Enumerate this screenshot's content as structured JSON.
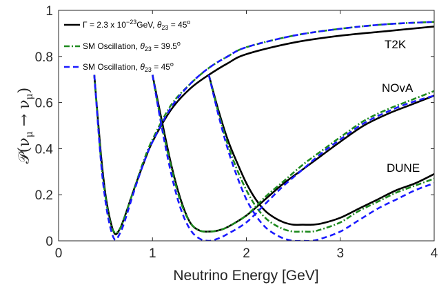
{
  "chart_data": {
    "type": "line",
    "xlabel": "Neutrino Energy [GeV]",
    "ylabel": "𝒫(ν",
    "ylabel_parts": {
      "script_p": "𝒫(ν",
      "sub1": "μ",
      "arrow": " → ν",
      "sub2": "μ",
      "close": ")"
    },
    "xlim": [
      0,
      4
    ],
    "ylim": [
      0,
      1
    ],
    "xticks": [
      "0",
      "1",
      "2",
      "3",
      "4"
    ],
    "yticks": [
      "0",
      "0.2",
      "0.4",
      "0.6",
      "0.8",
      "1"
    ],
    "grid": false,
    "legend_position": "top-left",
    "legend": [
      {
        "key": "gamma",
        "parts": [
          "Γ = 2.3 x 10",
          "−23",
          "GeV, ",
          "θ",
          "23",
          " = 45",
          "o"
        ]
      },
      {
        "key": "sm395",
        "parts": [
          "SM Oscillation, ",
          "θ",
          "23",
          " = 39.5",
          "o"
        ]
      },
      {
        "key": "sm45",
        "parts": [
          "SM Oscillation, ",
          "θ",
          "23",
          " = 45",
          "o"
        ]
      }
    ],
    "annotations": [
      "T2K",
      "NOvA",
      "DUNE"
    ],
    "colors": {
      "gamma": "#000000",
      "sm395": "#1e8a1e",
      "sm45": "#1a1aff"
    },
    "series": [
      {
        "experiment": "T2K",
        "style": "gamma",
        "x": [
          0.38,
          0.45,
          0.5,
          0.55,
          0.6,
          0.65,
          0.7,
          0.8,
          0.9,
          1.0,
          1.2,
          1.4,
          1.6,
          1.8,
          2.0,
          2.5,
          3.0,
          3.5,
          4.0
        ],
        "y": [
          0.72,
          0.38,
          0.2,
          0.09,
          0.03,
          0.05,
          0.1,
          0.22,
          0.33,
          0.43,
          0.57,
          0.66,
          0.72,
          0.77,
          0.81,
          0.86,
          0.89,
          0.91,
          0.93
        ]
      },
      {
        "experiment": "T2K",
        "style": "sm395",
        "x": [
          0.38,
          0.45,
          0.5,
          0.55,
          0.6,
          0.65,
          0.7,
          0.8,
          0.9,
          1.0,
          1.2,
          1.4,
          1.6,
          1.8,
          2.0,
          2.5,
          3.0,
          3.5,
          4.0
        ],
        "y": [
          0.72,
          0.36,
          0.19,
          0.08,
          0.035,
          0.05,
          0.1,
          0.22,
          0.34,
          0.44,
          0.59,
          0.68,
          0.75,
          0.8,
          0.84,
          0.89,
          0.92,
          0.94,
          0.95
        ]
      },
      {
        "experiment": "T2K",
        "style": "sm45",
        "x": [
          0.38,
          0.45,
          0.5,
          0.55,
          0.6,
          0.65,
          0.7,
          0.8,
          0.9,
          1.0,
          1.2,
          1.4,
          1.6,
          1.8,
          2.0,
          2.5,
          3.0,
          3.5,
          4.0
        ],
        "y": [
          0.72,
          0.35,
          0.17,
          0.06,
          0.005,
          0.03,
          0.08,
          0.21,
          0.33,
          0.43,
          0.58,
          0.68,
          0.75,
          0.8,
          0.84,
          0.89,
          0.92,
          0.94,
          0.95
        ]
      },
      {
        "experiment": "NOvA",
        "style": "gamma",
        "x": [
          1.0,
          1.1,
          1.2,
          1.3,
          1.4,
          1.5,
          1.6,
          1.7,
          1.8,
          2.0,
          2.2,
          2.4,
          2.6,
          2.8,
          3.0,
          3.25,
          3.5,
          3.75,
          4.0
        ],
        "y": [
          0.72,
          0.52,
          0.33,
          0.18,
          0.08,
          0.045,
          0.04,
          0.045,
          0.06,
          0.11,
          0.18,
          0.25,
          0.31,
          0.37,
          0.43,
          0.5,
          0.55,
          0.59,
          0.63
        ]
      },
      {
        "experiment": "NOvA",
        "style": "sm395",
        "x": [
          1.0,
          1.1,
          1.2,
          1.3,
          1.4,
          1.5,
          1.6,
          1.7,
          1.8,
          2.0,
          2.2,
          2.4,
          2.6,
          2.8,
          3.0,
          3.25,
          3.5,
          3.75,
          4.0
        ],
        "y": [
          0.72,
          0.5,
          0.32,
          0.17,
          0.08,
          0.045,
          0.04,
          0.045,
          0.06,
          0.11,
          0.19,
          0.26,
          0.33,
          0.39,
          0.45,
          0.52,
          0.57,
          0.61,
          0.65
        ]
      },
      {
        "experiment": "NOvA",
        "style": "sm45",
        "x": [
          1.0,
          1.1,
          1.2,
          1.3,
          1.4,
          1.5,
          1.6,
          1.7,
          1.8,
          2.0,
          2.2,
          2.4,
          2.6,
          2.8,
          3.0,
          3.25,
          3.5,
          3.75,
          4.0
        ],
        "y": [
          0.72,
          0.49,
          0.29,
          0.14,
          0.05,
          0.01,
          0.0,
          0.01,
          0.03,
          0.08,
          0.16,
          0.24,
          0.31,
          0.38,
          0.44,
          0.51,
          0.56,
          0.6,
          0.63
        ]
      },
      {
        "experiment": "DUNE",
        "style": "gamma",
        "x": [
          1.6,
          1.7,
          1.8,
          1.9,
          2.0,
          2.1,
          2.2,
          2.3,
          2.4,
          2.5,
          2.6,
          2.7,
          2.8,
          3.0,
          3.2,
          3.4,
          3.6,
          3.8,
          4.0
        ],
        "y": [
          0.72,
          0.57,
          0.44,
          0.34,
          0.25,
          0.18,
          0.13,
          0.1,
          0.08,
          0.07,
          0.07,
          0.07,
          0.075,
          0.1,
          0.14,
          0.18,
          0.22,
          0.25,
          0.29
        ]
      },
      {
        "experiment": "DUNE",
        "style": "sm395",
        "x": [
          1.6,
          1.7,
          1.8,
          1.9,
          2.0,
          2.1,
          2.2,
          2.3,
          2.4,
          2.5,
          2.6,
          2.7,
          2.8,
          3.0,
          3.2,
          3.4,
          3.6,
          3.8,
          4.0
        ],
        "y": [
          0.72,
          0.56,
          0.42,
          0.31,
          0.22,
          0.15,
          0.1,
          0.07,
          0.05,
          0.04,
          0.04,
          0.04,
          0.05,
          0.08,
          0.13,
          0.17,
          0.21,
          0.24,
          0.27
        ]
      },
      {
        "experiment": "DUNE",
        "style": "sm45",
        "x": [
          1.6,
          1.7,
          1.8,
          1.9,
          2.0,
          2.1,
          2.2,
          2.3,
          2.4,
          2.5,
          2.6,
          2.7,
          2.8,
          3.0,
          3.2,
          3.4,
          3.6,
          3.8,
          4.0
        ],
        "y": [
          0.72,
          0.55,
          0.4,
          0.28,
          0.18,
          0.11,
          0.06,
          0.03,
          0.01,
          0.0,
          0.0,
          0.0,
          0.01,
          0.04,
          0.09,
          0.14,
          0.18,
          0.22,
          0.25
        ]
      }
    ]
  }
}
